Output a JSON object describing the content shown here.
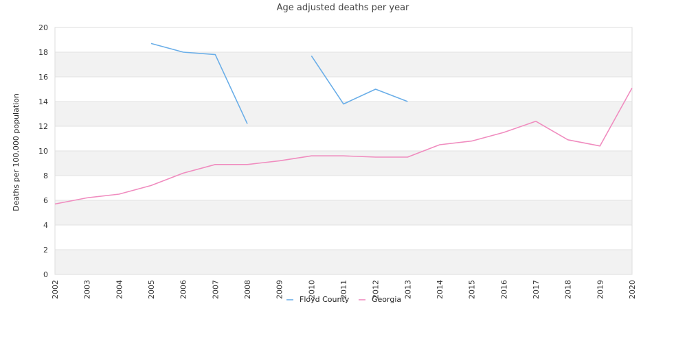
{
  "chart_data": {
    "type": "line",
    "title": "Age adjusted deaths per year",
    "xlabel": "",
    "ylabel": "Deaths per 100,000 population",
    "x": [
      "2002",
      "2003",
      "2004",
      "2005",
      "2006",
      "2007",
      "2008",
      "2009",
      "2010",
      "2011",
      "2012",
      "2013",
      "2014",
      "2015",
      "2016",
      "2017",
      "2018",
      "2019",
      "2020"
    ],
    "ylim": [
      0,
      20
    ],
    "yticks": [
      "0",
      "2",
      "4",
      "6",
      "8",
      "10",
      "12",
      "14",
      "16",
      "18",
      "20"
    ],
    "grid": true,
    "legend_position": "bottom",
    "series": [
      {
        "name": "Floyd County",
        "color": "#6aaee8",
        "values": [
          null,
          null,
          null,
          18.7,
          18.0,
          17.8,
          12.2,
          null,
          17.7,
          13.8,
          15.0,
          14.0,
          null,
          null,
          null,
          null,
          null,
          null,
          null
        ]
      },
      {
        "name": "Georgia",
        "color": "#f08cbf",
        "values": [
          5.7,
          6.2,
          6.5,
          7.2,
          8.2,
          8.9,
          8.9,
          9.2,
          9.6,
          9.6,
          9.5,
          9.5,
          10.5,
          10.8,
          11.5,
          12.4,
          10.9,
          10.4,
          15.1
        ]
      }
    ]
  }
}
